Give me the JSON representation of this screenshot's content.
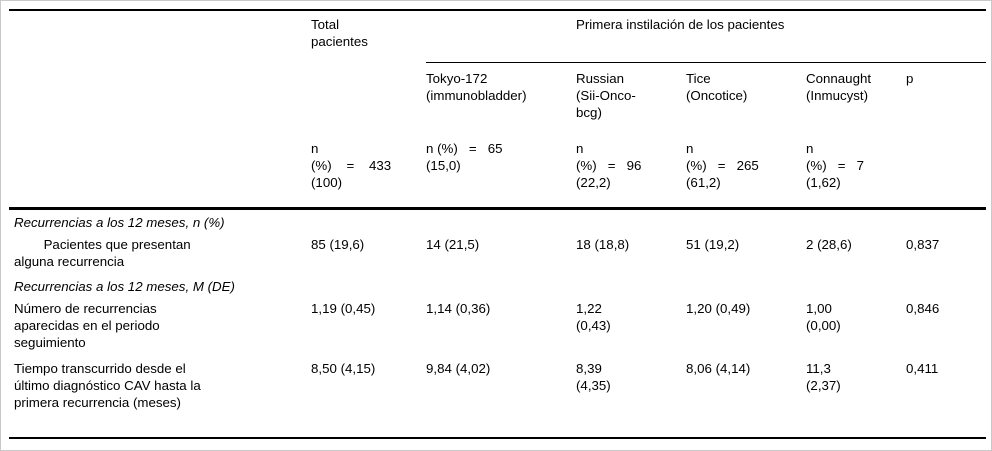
{
  "table": {
    "header": {
      "total_label": "Total\npacientes",
      "group_label": "Primera instilación de los pacientes",
      "strains": [
        "Tokyo-172\n(immunobladder)",
        "Russian\n(Sii-Onco-\nbcg)",
        "Tice\n(Oncotice)",
        "Connaught\n(Inmucyst)",
        "p"
      ],
      "total_n": "n\n(%)    =    433\n(100)",
      "ns": [
        "n (%)   =   65\n(15,0)",
        "n\n(%)   =   96\n(22,2)",
        "n\n(%)   =   265\n(61,2)",
        "n\n(%)   =   7\n(1,62)"
      ]
    },
    "rows": [
      {
        "type": "section",
        "label": "Recurrencias a los 12 meses, n (%)"
      },
      {
        "type": "data",
        "label": "        Pacientes que presentan\nalguna recurrencia",
        "values": [
          "85 (19,6)",
          "14 (21,5)",
          "18 (18,8)",
          "51 (19,2)",
          "2 (28,6)",
          "0,837"
        ]
      },
      {
        "type": "section",
        "label": "Recurrencias a los 12 meses, M (DE)"
      },
      {
        "type": "data",
        "label": "Número de recurrencias\naparecidas en el periodo\nseguimiento",
        "values": [
          "1,19 (0,45)",
          "1,14 (0,36)",
          "1,22\n(0,43)",
          "1,20 (0,49)",
          "1,00\n(0,00)",
          "0,846"
        ]
      },
      {
        "type": "data",
        "label": "Tiempo transcurrido desde el\núltimo diagnóstico CAV hasta la\nprimera recurrencia (meses)",
        "values": [
          "8,50 (4,15)",
          "9,84 (4,02)",
          "8,39\n(4,35)",
          "8,06 (4,14)",
          "11,3\n(2,37)",
          "0,411"
        ]
      }
    ]
  }
}
